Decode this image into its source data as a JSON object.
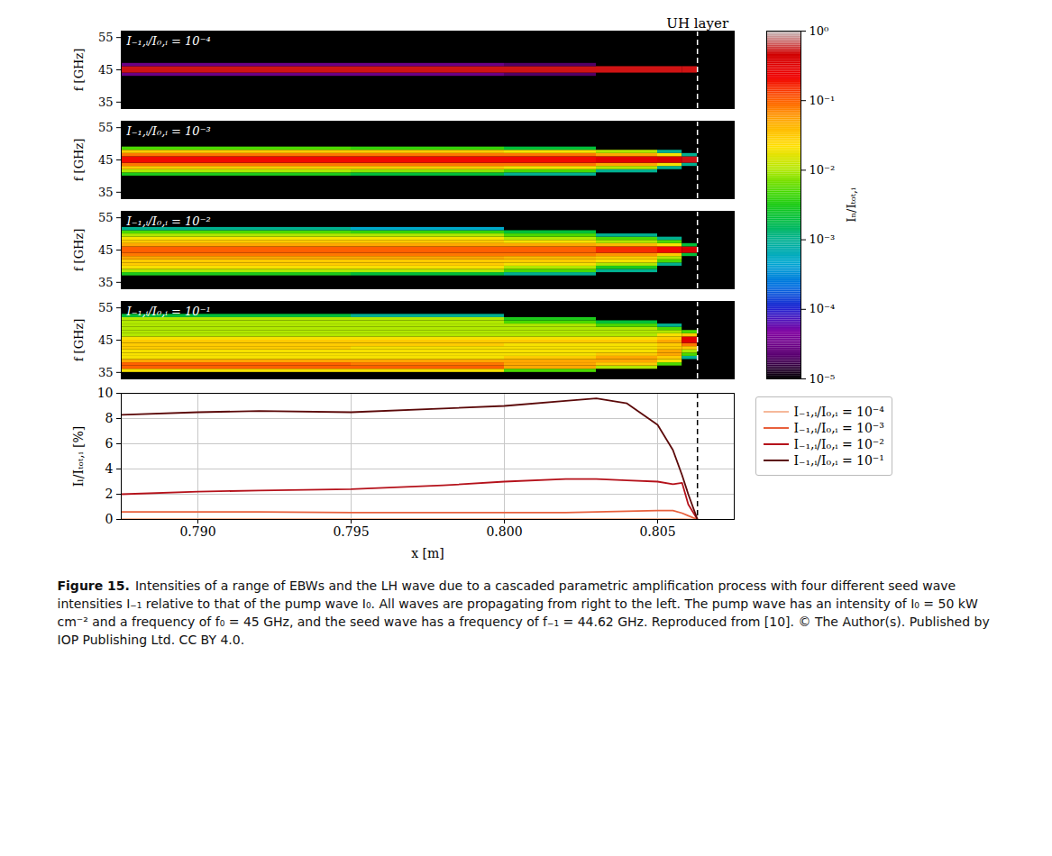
{
  "chart_data": [
    {
      "type": "heatmap",
      "annotation": "I₋₁,ᵢ/I₀,ᵢ = 10⁻⁴",
      "ylabel": "f [GHz]",
      "xlim": [
        0.7875,
        0.8075
      ],
      "ylim": [
        33,
        57
      ],
      "yticks": [
        35,
        45,
        55
      ],
      "x_edges": [
        0.7875,
        0.795,
        0.8,
        0.803,
        0.805,
        0.8058,
        0.8063
      ],
      "rows": [
        {
          "f_range": [
            43,
            44
          ],
          "values": [
            3e-05,
            3e-05,
            2e-05,
            null,
            null,
            null
          ]
        },
        {
          "f_range": [
            44,
            45
          ],
          "values": [
            0.5,
            0.5,
            0.5,
            0.5,
            0.5,
            0.5
          ]
        },
        {
          "f_range": [
            45,
            46
          ],
          "values": [
            0.5,
            0.5,
            0.5,
            0.5,
            0.5,
            0.5
          ]
        },
        {
          "f_range": [
            46,
            47
          ],
          "values": [
            3e-05,
            3e-05,
            2e-05,
            null,
            null,
            null
          ]
        }
      ]
    },
    {
      "type": "heatmap",
      "annotation": "I₋₁,ᵢ/I₀,ᵢ = 10⁻³",
      "ylabel": "f [GHz]",
      "xlim": [
        0.7875,
        0.8075
      ],
      "ylim": [
        33,
        57
      ],
      "yticks": [
        35,
        45,
        55
      ],
      "x_edges": [
        0.7875,
        0.795,
        0.8,
        0.803,
        0.805,
        0.8058,
        0.8063
      ],
      "rows": [
        {
          "f_range": [
            40,
            41
          ],
          "values": [
            0.003,
            0.002,
            0.001,
            null,
            null,
            null
          ]
        },
        {
          "f_range": [
            41,
            42
          ],
          "values": [
            0.01,
            0.008,
            0.005,
            0.001,
            null,
            null
          ]
        },
        {
          "f_range": [
            42,
            43
          ],
          "values": [
            0.03,
            0.03,
            0.02,
            0.01,
            0.001,
            null
          ]
        },
        {
          "f_range": [
            43,
            44
          ],
          "values": [
            0.08,
            0.08,
            0.08,
            0.05,
            0.02,
            0.001
          ]
        },
        {
          "f_range": [
            44,
            45
          ],
          "values": [
            0.2,
            0.2,
            0.2,
            0.3,
            0.4,
            0.5
          ]
        },
        {
          "f_range": [
            45,
            46
          ],
          "values": [
            0.2,
            0.2,
            0.2,
            0.3,
            0.4,
            0.5
          ]
        },
        {
          "f_range": [
            46,
            47
          ],
          "values": [
            0.08,
            0.08,
            0.08,
            0.05,
            0.02,
            0.001
          ]
        },
        {
          "f_range": [
            47,
            48
          ],
          "values": [
            0.03,
            0.03,
            0.02,
            0.01,
            0.001,
            null
          ]
        },
        {
          "f_range": [
            48,
            49
          ],
          "values": [
            0.005,
            0.004,
            0.002,
            null,
            null,
            null
          ]
        }
      ]
    },
    {
      "type": "heatmap",
      "annotation": "I₋₁,ᵢ/I₀,ᵢ = 10⁻²",
      "ylabel": "f [GHz]",
      "xlim": [
        0.7875,
        0.8075
      ],
      "ylim": [
        33,
        57
      ],
      "yticks": [
        35,
        45,
        55
      ],
      "x_edges": [
        0.7875,
        0.795,
        0.8,
        0.803,
        0.805,
        0.8058,
        0.8063
      ],
      "rows": [
        {
          "f_range": [
            37,
            38
          ],
          "values": [
            0.003,
            0.002,
            0.001,
            null,
            null,
            null
          ]
        },
        {
          "f_range": [
            38,
            39
          ],
          "values": [
            0.01,
            0.01,
            0.005,
            0.001,
            null,
            null
          ]
        },
        {
          "f_range": [
            39,
            40
          ],
          "values": [
            0.02,
            0.02,
            0.01,
            0.003,
            null,
            null
          ]
        },
        {
          "f_range": [
            40,
            41
          ],
          "values": [
            0.03,
            0.03,
            0.02,
            0.01,
            0.001,
            null
          ]
        },
        {
          "f_range": [
            41,
            42
          ],
          "values": [
            0.03,
            0.03,
            0.03,
            0.02,
            0.005,
            null
          ]
        },
        {
          "f_range": [
            42,
            43
          ],
          "values": [
            0.05,
            0.05,
            0.04,
            0.03,
            0.01,
            null
          ]
        },
        {
          "f_range": [
            43,
            44
          ],
          "values": [
            0.08,
            0.08,
            0.08,
            0.06,
            0.03,
            0.002
          ]
        },
        {
          "f_range": [
            44,
            45
          ],
          "values": [
            0.1,
            0.1,
            0.1,
            0.15,
            0.2,
            0.4
          ]
        },
        {
          "f_range": [
            45,
            46
          ],
          "values": [
            0.1,
            0.1,
            0.1,
            0.15,
            0.2,
            0.4
          ]
        },
        {
          "f_range": [
            46,
            47
          ],
          "values": [
            0.05,
            0.05,
            0.05,
            0.04,
            0.02,
            0.002
          ]
        },
        {
          "f_range": [
            47,
            48
          ],
          "values": [
            0.03,
            0.03,
            0.02,
            0.01,
            0.005,
            null
          ]
        },
        {
          "f_range": [
            48,
            49
          ],
          "values": [
            0.02,
            0.02,
            0.01,
            0.005,
            0.001,
            null
          ]
        },
        {
          "f_range": [
            49,
            50
          ],
          "values": [
            0.01,
            0.01,
            0.005,
            0.001,
            null,
            null
          ]
        },
        {
          "f_range": [
            50,
            51
          ],
          "values": [
            0.005,
            0.004,
            0.002,
            null,
            null,
            null
          ]
        },
        {
          "f_range": [
            51,
            52
          ],
          "values": [
            0.001,
            0.0005,
            null,
            null,
            null,
            null
          ]
        }
      ]
    },
    {
      "type": "heatmap",
      "annotation": "I₋₁,ᵢ/I₀,ᵢ = 10⁻¹",
      "ylabel": "f [GHz]",
      "xlim": [
        0.7875,
        0.8075
      ],
      "ylim": [
        33,
        57
      ],
      "yticks": [
        35,
        45,
        55
      ],
      "x_edges": [
        0.7875,
        0.795,
        0.8,
        0.803,
        0.805,
        0.8058,
        0.8063
      ],
      "rows": [
        {
          "f_range": [
            35,
            36
          ],
          "values": [
            0.02,
            0.02,
            0.005,
            null,
            null,
            null
          ]
        },
        {
          "f_range": [
            36,
            37
          ],
          "values": [
            0.1,
            0.1,
            0.05,
            0.01,
            null,
            null
          ]
        },
        {
          "f_range": [
            37,
            38
          ],
          "values": [
            0.1,
            0.08,
            0.05,
            0.03,
            0.005,
            null
          ]
        },
        {
          "f_range": [
            38,
            39
          ],
          "values": [
            0.05,
            0.05,
            0.05,
            0.05,
            0.02,
            null
          ]
        },
        {
          "f_range": [
            39,
            40
          ],
          "values": [
            0.02,
            0.02,
            0.03,
            0.05,
            0.03,
            0.001
          ]
        },
        {
          "f_range": [
            40,
            41
          ],
          "values": [
            0.02,
            0.02,
            0.02,
            0.03,
            0.05,
            0.005
          ]
        },
        {
          "f_range": [
            41,
            42
          ],
          "values": [
            0.02,
            0.02,
            0.02,
            0.02,
            0.05,
            0.01
          ]
        },
        {
          "f_range": [
            42,
            43
          ],
          "values": [
            0.03,
            0.02,
            0.02,
            0.02,
            0.03,
            0.03
          ]
        },
        {
          "f_range": [
            43,
            44
          ],
          "values": [
            0.03,
            0.03,
            0.02,
            0.02,
            0.03,
            0.08
          ]
        },
        {
          "f_range": [
            44,
            45
          ],
          "values": [
            0.03,
            0.03,
            0.03,
            0.03,
            0.05,
            0.3
          ]
        },
        {
          "f_range": [
            45,
            46
          ],
          "values": [
            0.02,
            0.02,
            0.02,
            0.02,
            0.03,
            0.3
          ]
        },
        {
          "f_range": [
            46,
            47
          ],
          "values": [
            0.01,
            0.01,
            0.01,
            0.01,
            0.02,
            0.03
          ]
        },
        {
          "f_range": [
            47,
            48
          ],
          "values": [
            0.01,
            0.01,
            0.01,
            0.01,
            0.01,
            0.005
          ]
        },
        {
          "f_range": [
            48,
            49
          ],
          "values": [
            0.01,
            0.01,
            0.01,
            0.01,
            0.005,
            null
          ]
        },
        {
          "f_range": [
            49,
            50
          ],
          "values": [
            0.01,
            0.01,
            0.01,
            0.005,
            0.001,
            null
          ]
        },
        {
          "f_range": [
            50,
            51
          ],
          "values": [
            0.01,
            0.01,
            0.005,
            0.002,
            null,
            null
          ]
        },
        {
          "f_range": [
            51,
            52
          ],
          "values": [
            0.01,
            0.01,
            0.003,
            null,
            null,
            null
          ]
        },
        {
          "f_range": [
            52,
            53
          ],
          "values": [
            0.002,
            0.001,
            null,
            null,
            null,
            null
          ]
        }
      ]
    },
    {
      "type": "line",
      "xlabel": "x [m]",
      "ylabel": "Iₗ/Iₜₒₜ,ᵢ [%]",
      "xlim": [
        0.7875,
        0.8075
      ],
      "ylim": [
        0,
        10
      ],
      "xticks": [
        {
          "value": 0.79,
          "label": "0.790"
        },
        {
          "value": 0.795,
          "label": "0.795"
        },
        {
          "value": 0.8,
          "label": "0.800"
        },
        {
          "value": 0.805,
          "label": "0.805"
        }
      ],
      "yticks": [
        0,
        2,
        4,
        6,
        8,
        10
      ],
      "grid": true,
      "legend": "right",
      "x": [
        0.7875,
        0.79,
        0.792,
        0.795,
        0.798,
        0.8,
        0.802,
        0.803,
        0.804,
        0.805,
        0.8055,
        0.8058,
        0.806,
        0.8063
      ],
      "series": [
        {
          "name": "I₋₁,ᵢ/I₀,ᵢ = 10⁻⁴",
          "color": "#f6b89a",
          "values": [
            0.05,
            0.05,
            0.05,
            0.05,
            0.05,
            0.05,
            0.05,
            0.05,
            0.05,
            0.05,
            0.05,
            0.04,
            0.02,
            0
          ]
        },
        {
          "name": "I₋₁,ᵢ/I₀,ᵢ = 10⁻³",
          "color": "#e8603c",
          "values": [
            0.6,
            0.6,
            0.6,
            0.55,
            0.55,
            0.55,
            0.55,
            0.6,
            0.65,
            0.7,
            0.7,
            0.5,
            0.3,
            0
          ]
        },
        {
          "name": "I₋₁,ᵢ/I₀,ᵢ = 10⁻²",
          "color": "#b5121b",
          "values": [
            2.0,
            2.2,
            2.3,
            2.4,
            2.7,
            3.0,
            3.2,
            3.2,
            3.1,
            3.0,
            2.8,
            2.9,
            1.2,
            0
          ]
        },
        {
          "name": "I₋₁,ᵢ/I₀,ᵢ = 10⁻¹",
          "color": "#5c0a0a",
          "values": [
            8.3,
            8.5,
            8.6,
            8.5,
            8.8,
            9.0,
            9.4,
            9.6,
            9.2,
            7.5,
            5.5,
            3.5,
            2.0,
            0
          ]
        }
      ]
    }
  ],
  "colorbar": {
    "label": "Iₙ/Iₜₒₜ,ᵢ",
    "range": [
      1e-05,
      1
    ],
    "ticks": [
      {
        "value": 1e-05,
        "label": "10⁻⁵"
      },
      {
        "value": 0.0001,
        "label": "10⁻⁴"
      },
      {
        "value": 0.001,
        "label": "10⁻³"
      },
      {
        "value": 0.01,
        "label": "10⁻²"
      },
      {
        "value": 0.1,
        "label": "10⁻¹"
      },
      {
        "value": 1,
        "label": "10⁰"
      }
    ]
  },
  "uh_layer": {
    "x": 0.8063,
    "label": "UH layer"
  },
  "caption": {
    "label": "Figure 15.",
    "text": "Intensities of a range of EBWs and the LH wave due to a cascaded parametric amplification process with four different seed wave intensities I₋₁ relative to that of the pump wave I₀. All waves are propagating from right to the left. The pump wave has an intensity of I₀ = 50 kW cm⁻² and a frequency of f₀ = 45 GHz, and the seed wave has a frequency of f₋₁ = 44.62 GHz. Reproduced from [10]. © The Author(s). Published by IOP Publishing Ltd. CC BY 4.0."
  }
}
